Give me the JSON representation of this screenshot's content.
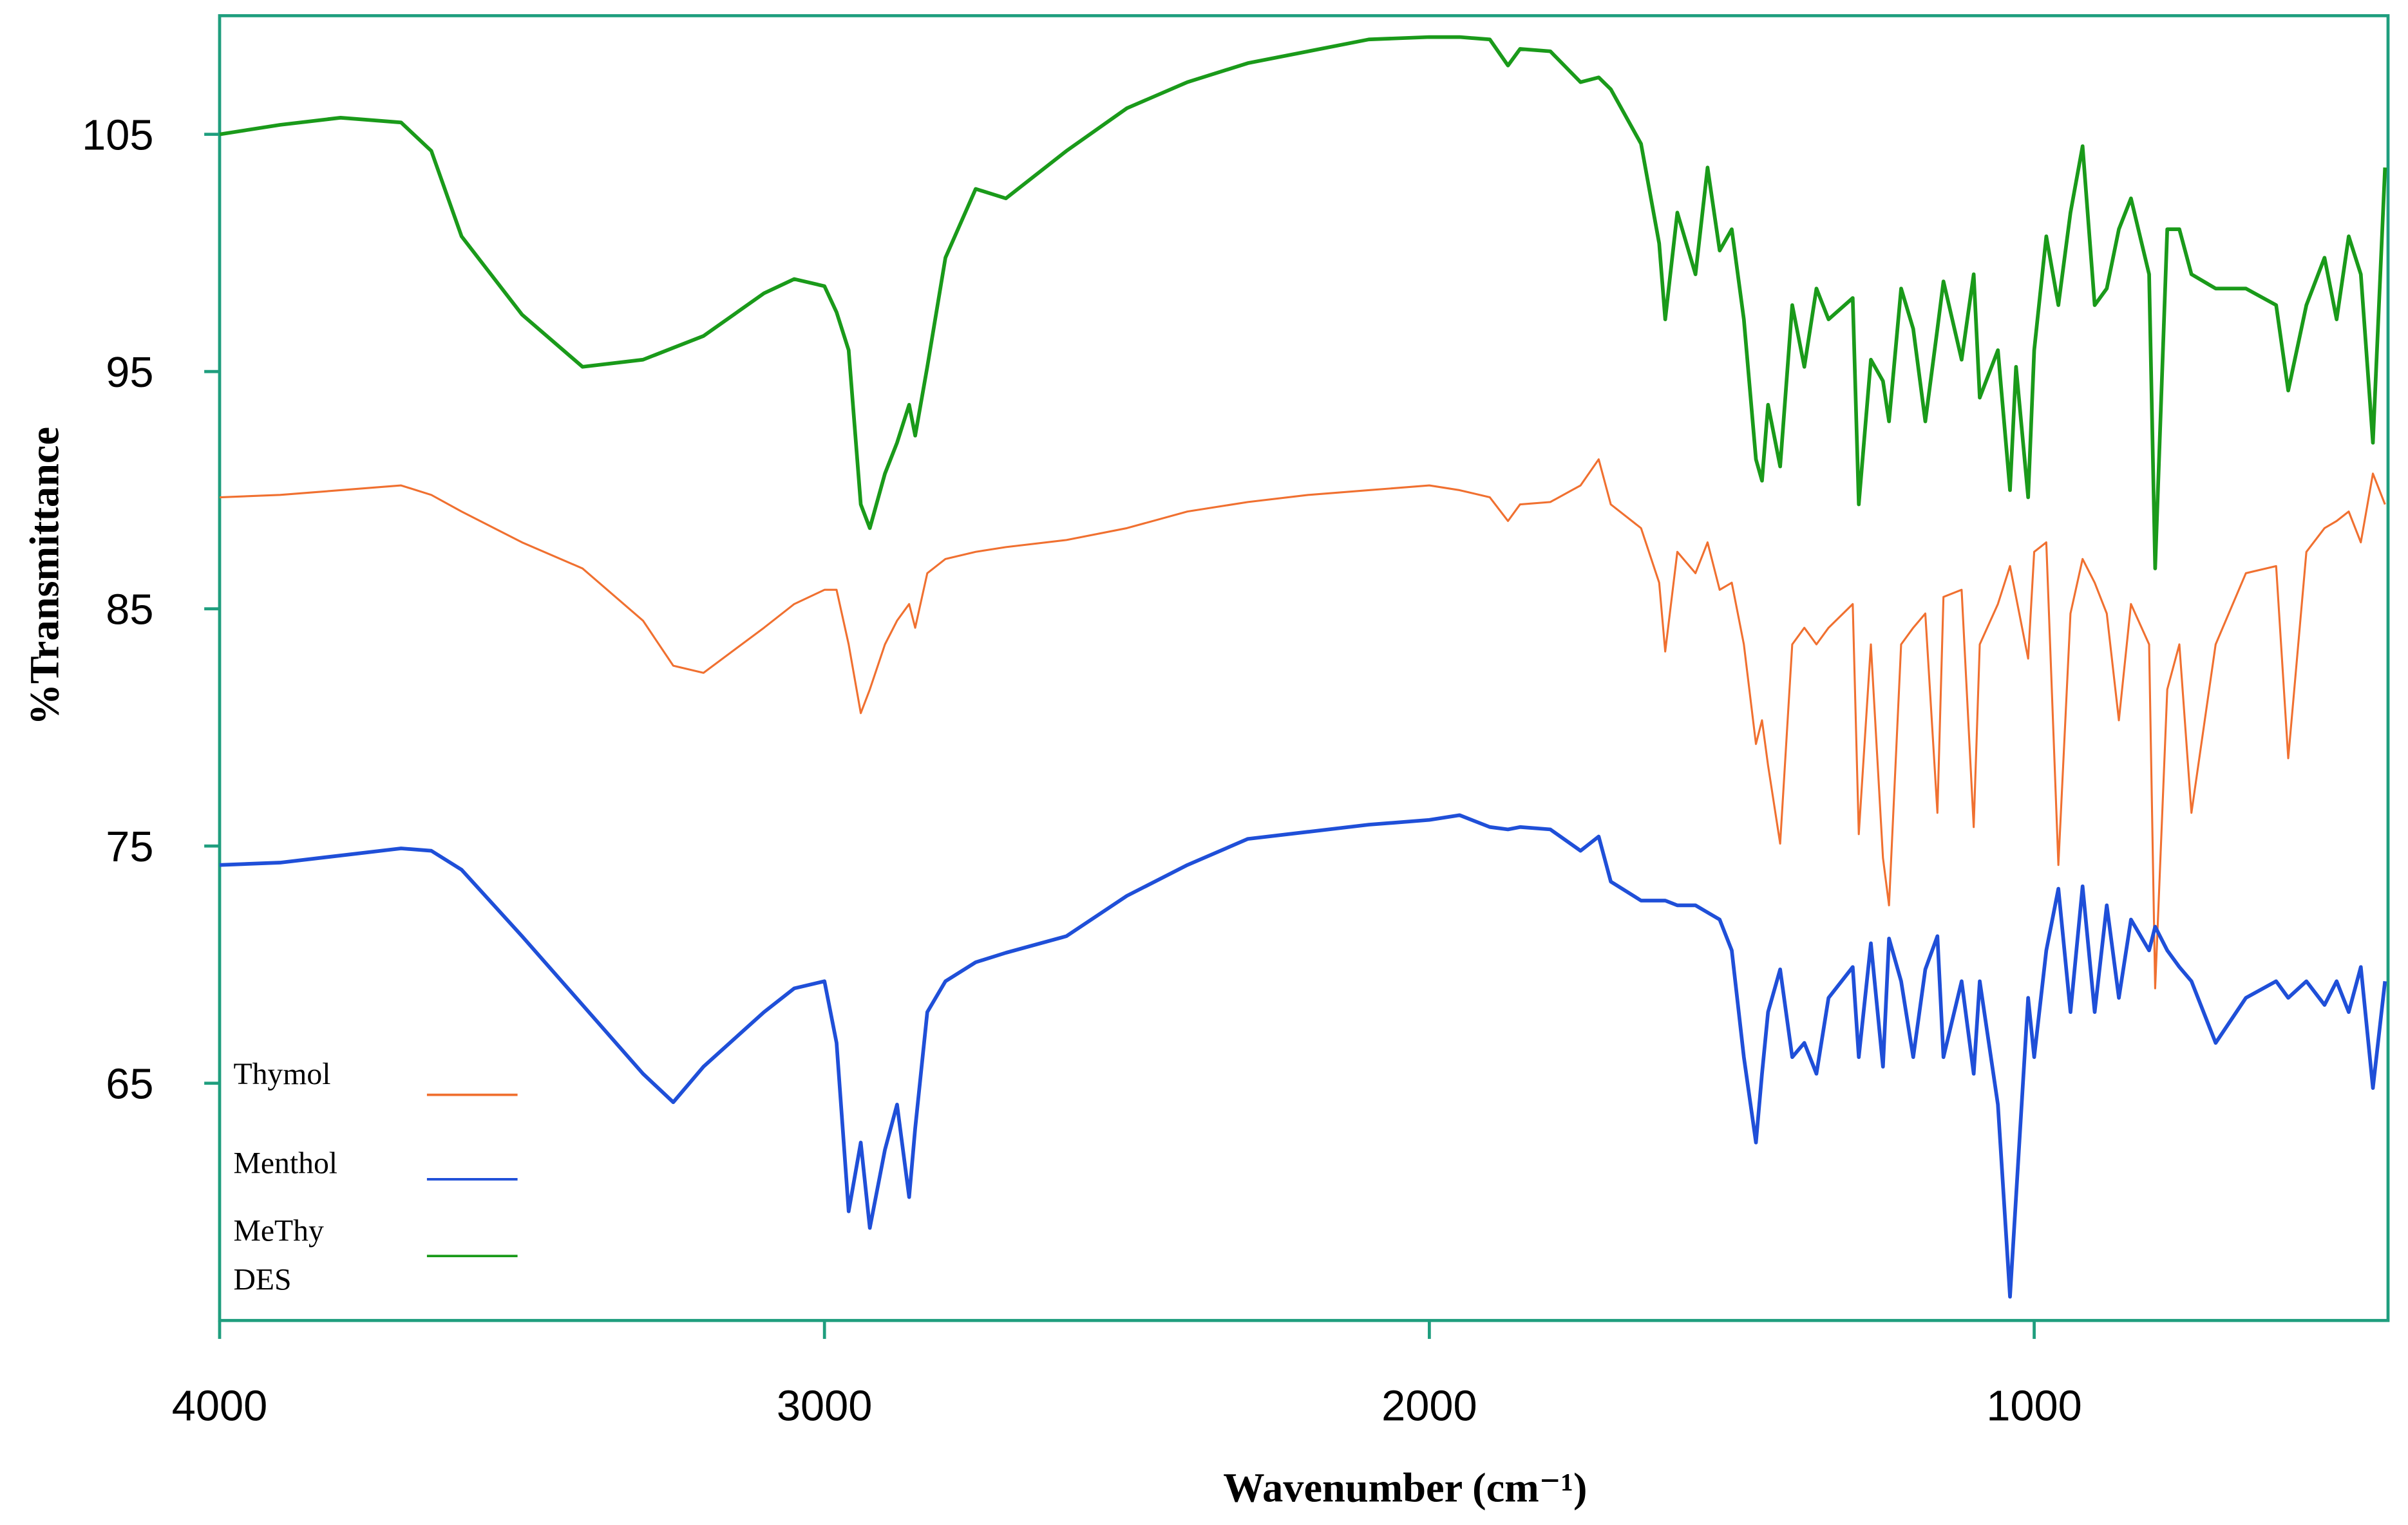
{
  "chart_data": {
    "type": "line",
    "x_label": "Wavenumber (cm⁻¹)",
    "y_label": "%Transmittance",
    "xlim": [
      4000,
      415
    ],
    "xticks": [
      4000,
      3000,
      2000,
      1000
    ],
    "ylim": [
      55,
      110
    ],
    "yticks": [
      65,
      75,
      85,
      95,
      105
    ],
    "legend": "bottom-left",
    "x": [
      4000,
      3900,
      3800,
      3700,
      3650,
      3600,
      3500,
      3400,
      3300,
      3250,
      3200,
      3100,
      3050,
      3000,
      2980,
      2960,
      2940,
      2925,
      2900,
      2880,
      2860,
      2850,
      2830,
      2800,
      2750,
      2700,
      2600,
      2500,
      2400,
      2300,
      2200,
      2100,
      2000,
      1950,
      1900,
      1870,
      1850,
      1800,
      1750,
      1720,
      1700,
      1650,
      1620,
      1610,
      1590,
      1560,
      1540,
      1520,
      1500,
      1480,
      1460,
      1450,
      1440,
      1420,
      1400,
      1380,
      1360,
      1340,
      1300,
      1290,
      1270,
      1250,
      1240,
      1220,
      1200,
      1180,
      1160,
      1150,
      1120,
      1100,
      1090,
      1060,
      1040,
      1030,
      1010,
      1000,
      980,
      960,
      940,
      920,
      900,
      880,
      860,
      840,
      810,
      800,
      780,
      760,
      740,
      700,
      650,
      600,
      580,
      550,
      520,
      500,
      480,
      460,
      440,
      420
    ],
    "series": [
      {
        "name": "Thymol",
        "color": "#f07030",
        "values": [
          89.7,
          89.8,
          90.0,
          90.2,
          89.8,
          89.1,
          87.8,
          86.7,
          84.5,
          82.6,
          82.3,
          84.2,
          85.2,
          85.8,
          85.8,
          83.5,
          80.6,
          81.6,
          83.5,
          84.5,
          85.2,
          84.2,
          86.5,
          87.1,
          87.4,
          87.6,
          87.9,
          88.4,
          89.1,
          89.5,
          89.8,
          90.0,
          90.2,
          90.0,
          89.7,
          88.7,
          89.4,
          89.5,
          90.2,
          91.3,
          89.4,
          88.4,
          86.1,
          83.2,
          87.4,
          86.5,
          87.8,
          85.8,
          86.1,
          83.5,
          79.3,
          80.3,
          78.4,
          75.1,
          83.5,
          84.2,
          83.5,
          84.2,
          85.2,
          75.5,
          83.5,
          74.5,
          72.5,
          83.5,
          84.2,
          84.8,
          76.4,
          85.5,
          85.8,
          75.8,
          83.5,
          85.2,
          86.8,
          85.5,
          82.9,
          87.4,
          87.8,
          74.2,
          84.8,
          87.1,
          86.1,
          84.8,
          80.3,
          85.2,
          83.5,
          69.0,
          81.6,
          83.5,
          76.4,
          83.5,
          86.5,
          86.8,
          78.7,
          87.4,
          88.4,
          88.7,
          89.1,
          87.8,
          90.7,
          89.4
        ]
      },
      {
        "name": "Menthol",
        "color": "#1f4fd8",
        "values": [
          74.2,
          74.3,
          74.6,
          74.9,
          74.8,
          74.0,
          71.2,
          68.3,
          65.4,
          64.2,
          65.7,
          68.0,
          69.0,
          69.3,
          66.7,
          59.6,
          62.5,
          58.9,
          62.2,
          64.1,
          60.2,
          63.1,
          68.0,
          69.3,
          70.1,
          70.5,
          71.2,
          72.9,
          74.2,
          75.3,
          75.6,
          75.9,
          76.1,
          76.3,
          75.8,
          75.7,
          75.8,
          75.7,
          74.8,
          75.4,
          73.5,
          72.7,
          72.7,
          72.7,
          72.5,
          72.5,
          72.2,
          71.9,
          70.6,
          66.1,
          62.5,
          65.4,
          68.0,
          69.8,
          66.1,
          66.7,
          65.4,
          68.6,
          69.9,
          66.1,
          70.9,
          65.7,
          71.1,
          69.3,
          66.1,
          69.8,
          71.2,
          66.1,
          69.3,
          65.4,
          69.3,
          64.1,
          56.0,
          60.2,
          68.6,
          66.1,
          70.6,
          73.2,
          68.0,
          73.3,
          68.0,
          72.5,
          68.6,
          71.9,
          70.6,
          71.6,
          70.6,
          69.9,
          69.3,
          66.7,
          68.6,
          69.3,
          68.6,
          69.3,
          68.3,
          69.3,
          68.0,
          69.9,
          64.8,
          69.3
        ]
      },
      {
        "name": "MeThy DES",
        "color": "#1a9a1a",
        "values": [
          105.0,
          105.4,
          105.7,
          105.5,
          104.3,
          100.7,
          97.4,
          95.2,
          95.5,
          96.0,
          96.5,
          98.3,
          98.9,
          98.6,
          97.5,
          95.9,
          89.4,
          88.4,
          90.7,
          92.0,
          93.6,
          92.3,
          95.2,
          99.8,
          102.7,
          102.3,
          104.3,
          106.1,
          107.2,
          108.0,
          108.5,
          109.0,
          109.1,
          109.1,
          109.0,
          107.9,
          108.6,
          108.5,
          107.2,
          107.4,
          106.9,
          104.6,
          100.4,
          97.2,
          101.7,
          99.1,
          103.6,
          100.1,
          101.0,
          97.2,
          91.3,
          90.4,
          93.6,
          91.0,
          97.8,
          95.2,
          98.5,
          97.2,
          98.1,
          89.4,
          95.5,
          94.6,
          92.9,
          98.5,
          96.8,
          92.9,
          96.8,
          98.8,
          95.5,
          99.1,
          93.9,
          95.9,
          90.0,
          95.2,
          89.7,
          95.9,
          100.7,
          97.8,
          101.7,
          104.5,
          97.8,
          98.5,
          101.0,
          102.3,
          99.1,
          86.7,
          101.0,
          101.0,
          99.1,
          98.5,
          98.5,
          97.8,
          94.2,
          97.8,
          99.8,
          97.2,
          100.7,
          99.1,
          92.0,
          103.6
        ]
      }
    ]
  }
}
